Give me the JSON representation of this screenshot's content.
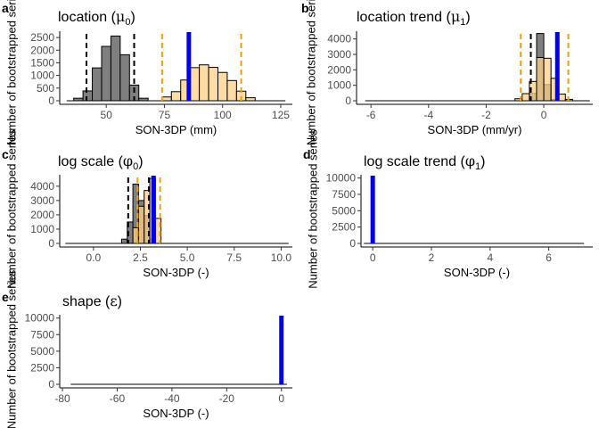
{
  "chart_data": [
    {
      "type": "histogram",
      "tag": "a",
      "title_main": "location (",
      "title_symbol": "μ",
      "title_sub": "0",
      "title_end": ")",
      "xlabel": "SON-3DP (mm)",
      "ylabel": "Number of bootstrapped series",
      "xlim": [
        30,
        130
      ],
      "ylim": [
        0,
        2750
      ],
      "xticks": [
        50,
        75,
        100,
        125
      ],
      "yticks": [
        0,
        500,
        1000,
        1500,
        2000,
        2500
      ],
      "baseline": [
        33,
        127
      ],
      "series": [
        {
          "color": "#7f7f7f",
          "bin_width": 4,
          "bins": [
            [
              36,
              40,
              100
            ],
            [
              40,
              44,
              390
            ],
            [
              44,
              48,
              1300
            ],
            [
              48,
              52,
              2150
            ],
            [
              52,
              56,
              2560
            ],
            [
              56,
              60,
              1820
            ],
            [
              60,
              64,
              620
            ],
            [
              64,
              68,
              100
            ]
          ],
          "ci": [
            41.5,
            62
          ],
          "ci_color": "#000000"
        },
        {
          "color": "#fdd086",
          "bin_width": 4,
          "bins": [
            [
              74,
              78,
              150
            ],
            [
              78,
              82,
              360
            ],
            [
              82,
              86,
              820
            ],
            [
              86,
              90,
              1310
            ],
            [
              90,
              94,
              1420
            ],
            [
              94,
              98,
              1320
            ],
            [
              98,
              102,
              1120
            ],
            [
              102,
              106,
              800
            ],
            [
              106,
              110,
              380
            ],
            [
              110,
              114,
              120
            ]
          ],
          "ci": [
            74,
            108
          ],
          "ci_color": "#f0a000"
        }
      ],
      "estimate": 85.5,
      "estimate_color": "#0000ee"
    },
    {
      "type": "histogram",
      "tag": "b",
      "title_main": "location trend (",
      "title_symbol": "μ",
      "title_sub": "1",
      "title_end": ")",
      "xlabel": "SON-3DP (mm/yr)",
      "ylabel": "Number of bootstrapped series",
      "xlim": [
        -6.5,
        1.7
      ],
      "ylim": [
        0,
        4500
      ],
      "xticks": [
        -6,
        -4,
        -2,
        0
      ],
      "yticks": [
        0,
        1000,
        2000,
        3000,
        4000
      ],
      "baseline": [
        -6.2,
        1.6
      ],
      "series": [
        {
          "color": "#7f7f7f",
          "bin_width": 0.25,
          "bins": [
            [
              -0.5,
              -0.25,
              480
            ],
            [
              -0.25,
              0,
              4350
            ],
            [
              0,
              0.25,
              1050
            ],
            [
              0.25,
              0.5,
              90
            ]
          ],
          "ci": [
            -0.45,
            0.45
          ],
          "ci_color": "#000000"
        },
        {
          "color": "#fdd086",
          "bin_width": 0.25,
          "bins": [
            [
              -1.0,
              -0.75,
              130
            ],
            [
              -0.75,
              -0.5,
              460
            ],
            [
              -0.5,
              -0.25,
              1250
            ],
            [
              -0.25,
              0,
              2800
            ],
            [
              0,
              0.25,
              2750
            ],
            [
              0.25,
              0.5,
              1450
            ],
            [
              0.5,
              0.75,
              430
            ],
            [
              0.75,
              1.0,
              90
            ]
          ],
          "ci": [
            -0.8,
            0.85
          ],
          "ci_color": "#f0a000"
        }
      ],
      "estimate": 0.47,
      "estimate_color": "#0000ee"
    },
    {
      "type": "histogram",
      "tag": "c",
      "title_main": "log scale (",
      "title_symbol": "φ",
      "title_sub": "0",
      "title_end": ")",
      "xlabel": "SON-3DP (-)",
      "ylabel": "Number of bootstrapped series",
      "xlim": [
        -1.8,
        10.6
      ],
      "ylim": [
        0,
        4800
      ],
      "xticks": [
        0.0,
        2.5,
        5.0,
        7.5,
        10.0
      ],
      "xtick_labels": [
        "0.0",
        "2.5",
        "5.0",
        "7.5",
        "10.0"
      ],
      "yticks": [
        0,
        1000,
        2000,
        3000,
        4000
      ],
      "baseline": [
        -1.5,
        10.4
      ],
      "series": [
        {
          "color": "#7f7f7f",
          "bin_width": 0.3,
          "bins": [
            [
              1.5,
              1.8,
              300
            ],
            [
              1.8,
              2.1,
              1500
            ],
            [
              2.1,
              2.4,
              4150
            ],
            [
              2.4,
              2.7,
              3000
            ],
            [
              2.7,
              3.0,
              1950
            ],
            [
              3.0,
              3.3,
              300
            ]
          ],
          "ci": [
            1.85,
            2.95
          ],
          "ci_color": "#000000"
        },
        {
          "color": "#fdd086",
          "bin_width": 0.3,
          "bins": [
            [
              2.1,
              2.4,
              1100
            ],
            [
              2.4,
              2.7,
              2600
            ],
            [
              2.7,
              3.0,
              3700
            ],
            [
              3.0,
              3.3,
              4550
            ],
            [
              3.3,
              3.6,
              1750
            ]
          ],
          "ci": [
            2.35,
            3.55
          ],
          "ci_color": "#f0a000"
        }
      ],
      "estimate": 3.2,
      "estimate_color": "#0000ee"
    },
    {
      "type": "histogram",
      "tag": "d",
      "title_main": "log scale trend (",
      "title_symbol": "φ",
      "title_sub": "1",
      "title_end": ")",
      "xlabel": "SON-3DP (-)",
      "ylabel": "Number of bootstrapped series",
      "xlim": [
        -0.4,
        7.5
      ],
      "ylim": [
        0,
        10500
      ],
      "xticks": [
        0,
        2,
        4,
        6
      ],
      "yticks": [
        0,
        2500,
        5000,
        7500,
        10000
      ],
      "baseline": [
        -0.3,
        7.2
      ],
      "series": [
        {
          "color": "#7f7f7f",
          "bin_width": 0.1,
          "bins": [
            [
              -0.05,
              0.05,
              10000
            ]
          ],
          "ci": [
            0,
            0
          ],
          "ci_color": "#000000"
        }
      ],
      "estimate": 0.0,
      "estimate_color": "#0000ee"
    },
    {
      "type": "histogram",
      "tag": "e",
      "title_main": "shape (",
      "title_symbol": "ε",
      "title_sub": "",
      "title_end": ")",
      "xlabel": "SON-3DP (-)",
      "ylabel": "Number of bootstrapped series",
      "xlim": [
        -81,
        4
      ],
      "ylim": [
        0,
        10500
      ],
      "xticks": [
        -80,
        -60,
        -40,
        -20,
        0
      ],
      "yticks": [
        0,
        2500,
        5000,
        7500,
        10000
      ],
      "baseline": [
        -77,
        2
      ],
      "series": [
        {
          "color": "#7f7f7f",
          "bin_width": 1,
          "bins": [
            [
              -0.5,
              0.5,
              10000
            ]
          ],
          "ci": [
            0,
            0
          ],
          "ci_color": "#000000"
        }
      ],
      "estimate": 0.0,
      "estimate_color": "#0000ee"
    }
  ]
}
